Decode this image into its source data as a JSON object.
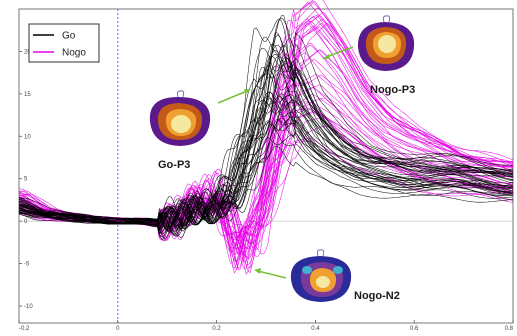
{
  "chart_data": {
    "type": "line",
    "title": "",
    "xlabel": "",
    "ylabel": "",
    "xlim": [
      -200,
      800
    ],
    "ylim": [
      -12,
      25
    ],
    "x_ticks": [
      -200,
      0,
      200,
      400,
      600,
      800
    ],
    "x_tick_labels": [
      "-0.2",
      "0",
      "0.2",
      "0.4",
      "0.6",
      "0.8"
    ],
    "y_ticks": [
      -10,
      -5,
      0,
      5,
      10,
      15,
      20
    ],
    "y_tick_labels": [
      "-10",
      "-5",
      "0",
      "5",
      "10",
      "15",
      "20"
    ],
    "stimulus_onset_x": 0,
    "grid": false,
    "legend": {
      "placement": "top-left"
    },
    "series": [
      {
        "name": "Go",
        "color": "#000000",
        "trace_count": 40,
        "x": [
          -200,
          -150,
          -100,
          -50,
          0,
          50,
          100,
          150,
          200,
          230,
          250,
          280,
          300,
          330,
          360,
          400,
          450,
          500,
          550,
          600,
          650,
          700,
          750,
          800
        ],
        "y": [
          2,
          0.8,
          0.5,
          0.2,
          0,
          0,
          -0.3,
          1.2,
          1.5,
          3,
          5.5,
          10,
          15,
          17,
          15.5,
          11,
          8,
          6.5,
          6,
          5.5,
          5.5,
          5.5,
          5,
          4.5
        ]
      },
      {
        "name": "Nogo",
        "color": "#e600e6",
        "trace_count": 40,
        "x": [
          -200,
          -150,
          -100,
          -50,
          0,
          50,
          100,
          150,
          200,
          230,
          250,
          280,
          300,
          330,
          360,
          400,
          450,
          500,
          550,
          600,
          650,
          700,
          750,
          800
        ],
        "y": [
          2.5,
          1,
          0.5,
          0.2,
          0,
          0,
          -0.3,
          1.8,
          3,
          -1,
          -3.5,
          -1,
          4,
          11,
          17.5,
          19,
          16,
          12,
          9.5,
          8,
          7,
          6,
          5.5,
          5
        ]
      }
    ],
    "annotations": [
      {
        "label": "Go-P3",
        "points_to_x": 320,
        "points_to_y": 16
      },
      {
        "label": "Nogo-P3",
        "points_to_x": 400,
        "points_to_y": 19
      },
      {
        "label": "Nogo-N2",
        "points_to_x": 270,
        "points_to_y": -4
      }
    ],
    "topomap_colors": [
      "#5a1a8c",
      "#c45a1a",
      "#f0a030",
      "#f5e8a0"
    ]
  }
}
